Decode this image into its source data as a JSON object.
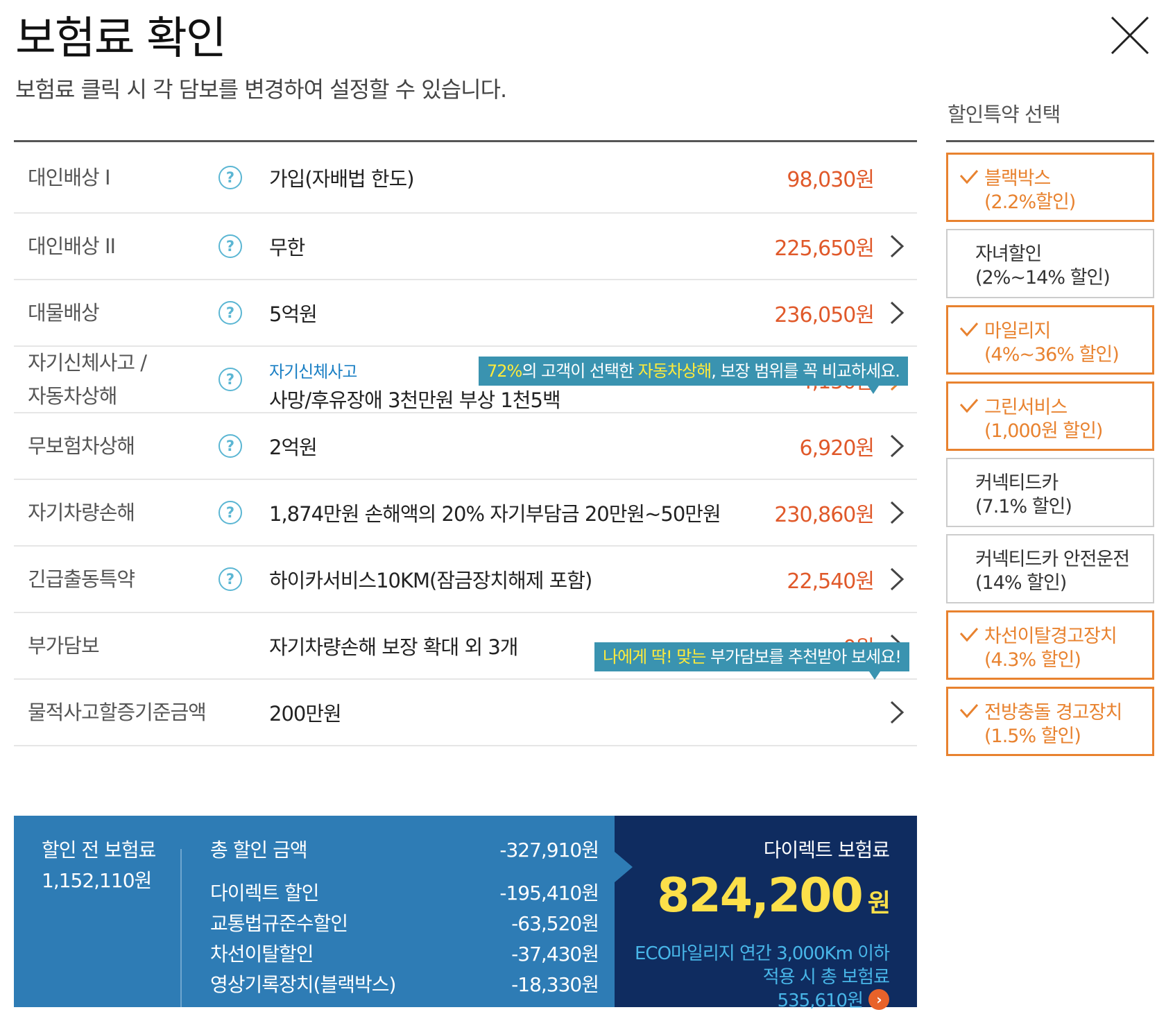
{
  "header": {
    "title": "보험료 확인",
    "subtitle": "보험료 클릭 시 각 담보를 변경하여 설정할 수 있습니다."
  },
  "coverages": [
    {
      "label": "대인배상 Ⅰ",
      "value": "가입(자배법 한도)",
      "price": "98,030원"
    },
    {
      "label": "대인배상 II",
      "value": "무한",
      "price": "225,650원"
    },
    {
      "label": "대물배상",
      "value": "5억원",
      "price": "236,050원"
    },
    {
      "label_line1": "자기신체사고 /",
      "label_line2": "자동차상해",
      "value_sub": "자기신체사고",
      "value": "사망/후유장애 3천만원 부상 1천5백",
      "price": "4,150원"
    },
    {
      "label": "무보험차상해",
      "value": "2억원",
      "price": "6,920원"
    },
    {
      "label": "자기차량손해",
      "value": "1,874만원 손해액의 20% 자기부담금 20만원~50만원",
      "price": "230,860원"
    },
    {
      "label": "긴급출동특약",
      "value": "하이카서비스10KM(잠금장치해제 포함)",
      "price": "22,540원"
    },
    {
      "label": "부가담보",
      "value": "자기차량손해 보장 확대 외 3개",
      "price": "0원"
    },
    {
      "label": "물적사고할증기준금액",
      "value": "200만원",
      "price": ""
    }
  ],
  "tooltips": {
    "tip1": {
      "hl1": "72%",
      "text1": "의 고객이 선택한 ",
      "hl2": "자동차상해",
      "text2": ", 보장 범위를 꼭 비교하세요."
    },
    "tip2": {
      "hl1": "나에게 딱! 맞는",
      "text1": " 부가담보를 추천받아 보세요!"
    }
  },
  "summary": {
    "before_label": "할인 전 보험료",
    "before_value": "1,152,110원",
    "discounts": [
      {
        "label": "총 할인 금액",
        "amount": "-327,910원"
      },
      {
        "label": "다이렉트 할인",
        "amount": "-195,410원"
      },
      {
        "label": "교통법규준수할인",
        "amount": "-63,520원"
      },
      {
        "label": "차선이탈할인",
        "amount": "-37,430원"
      },
      {
        "label": "영상기록장치(블랙박스)",
        "amount": "-18,330원"
      }
    ],
    "direct_label": "다이렉트 보험료",
    "direct_price": "824,200",
    "direct_unit": "원",
    "eco_line1": "ECO마일리지 연간 3,000Km 이하",
    "eco_line2": "적용 시 총 보험료",
    "eco_value": "535,610원",
    "eco_arrow": "›"
  },
  "sidebar": {
    "title": "할인특약 선택",
    "items": [
      {
        "line1": "블랙박스",
        "line2": "(2.2%할인)",
        "checked": true
      },
      {
        "line1": "자녀할인",
        "line2": "(2%~14% 할인)",
        "checked": false
      },
      {
        "line1": "마일리지",
        "line2": "(4%~36% 할인)",
        "checked": true
      },
      {
        "line1": "그린서비스",
        "line2": "(1,000원 할인)",
        "checked": true
      },
      {
        "line1": "커넥티드카",
        "line2": "(7.1% 할인)",
        "checked": false
      },
      {
        "line1": "커넥티드카 안전운전",
        "line2": "(14% 할인)",
        "checked": false
      },
      {
        "line1": "차선이탈경고장치",
        "line2": "(4.3% 할인)",
        "checked": true
      },
      {
        "line1": "전방충돌 경고장치",
        "line2": "(1.5% 할인)",
        "checked": true
      }
    ]
  },
  "icons": {
    "help": "?",
    "close": "close-icon",
    "chevron": "chevron-right-icon",
    "check": "check-icon"
  },
  "colors": {
    "price": "#e0592a",
    "accent_orange": "#e8822f",
    "tooltip_bg": "#3a93b0",
    "summary_blue": "#2e7cb5",
    "summary_navy": "#0f2c60",
    "highlight_yellow": "#fce04a",
    "eco_blue": "#48b6e8"
  }
}
